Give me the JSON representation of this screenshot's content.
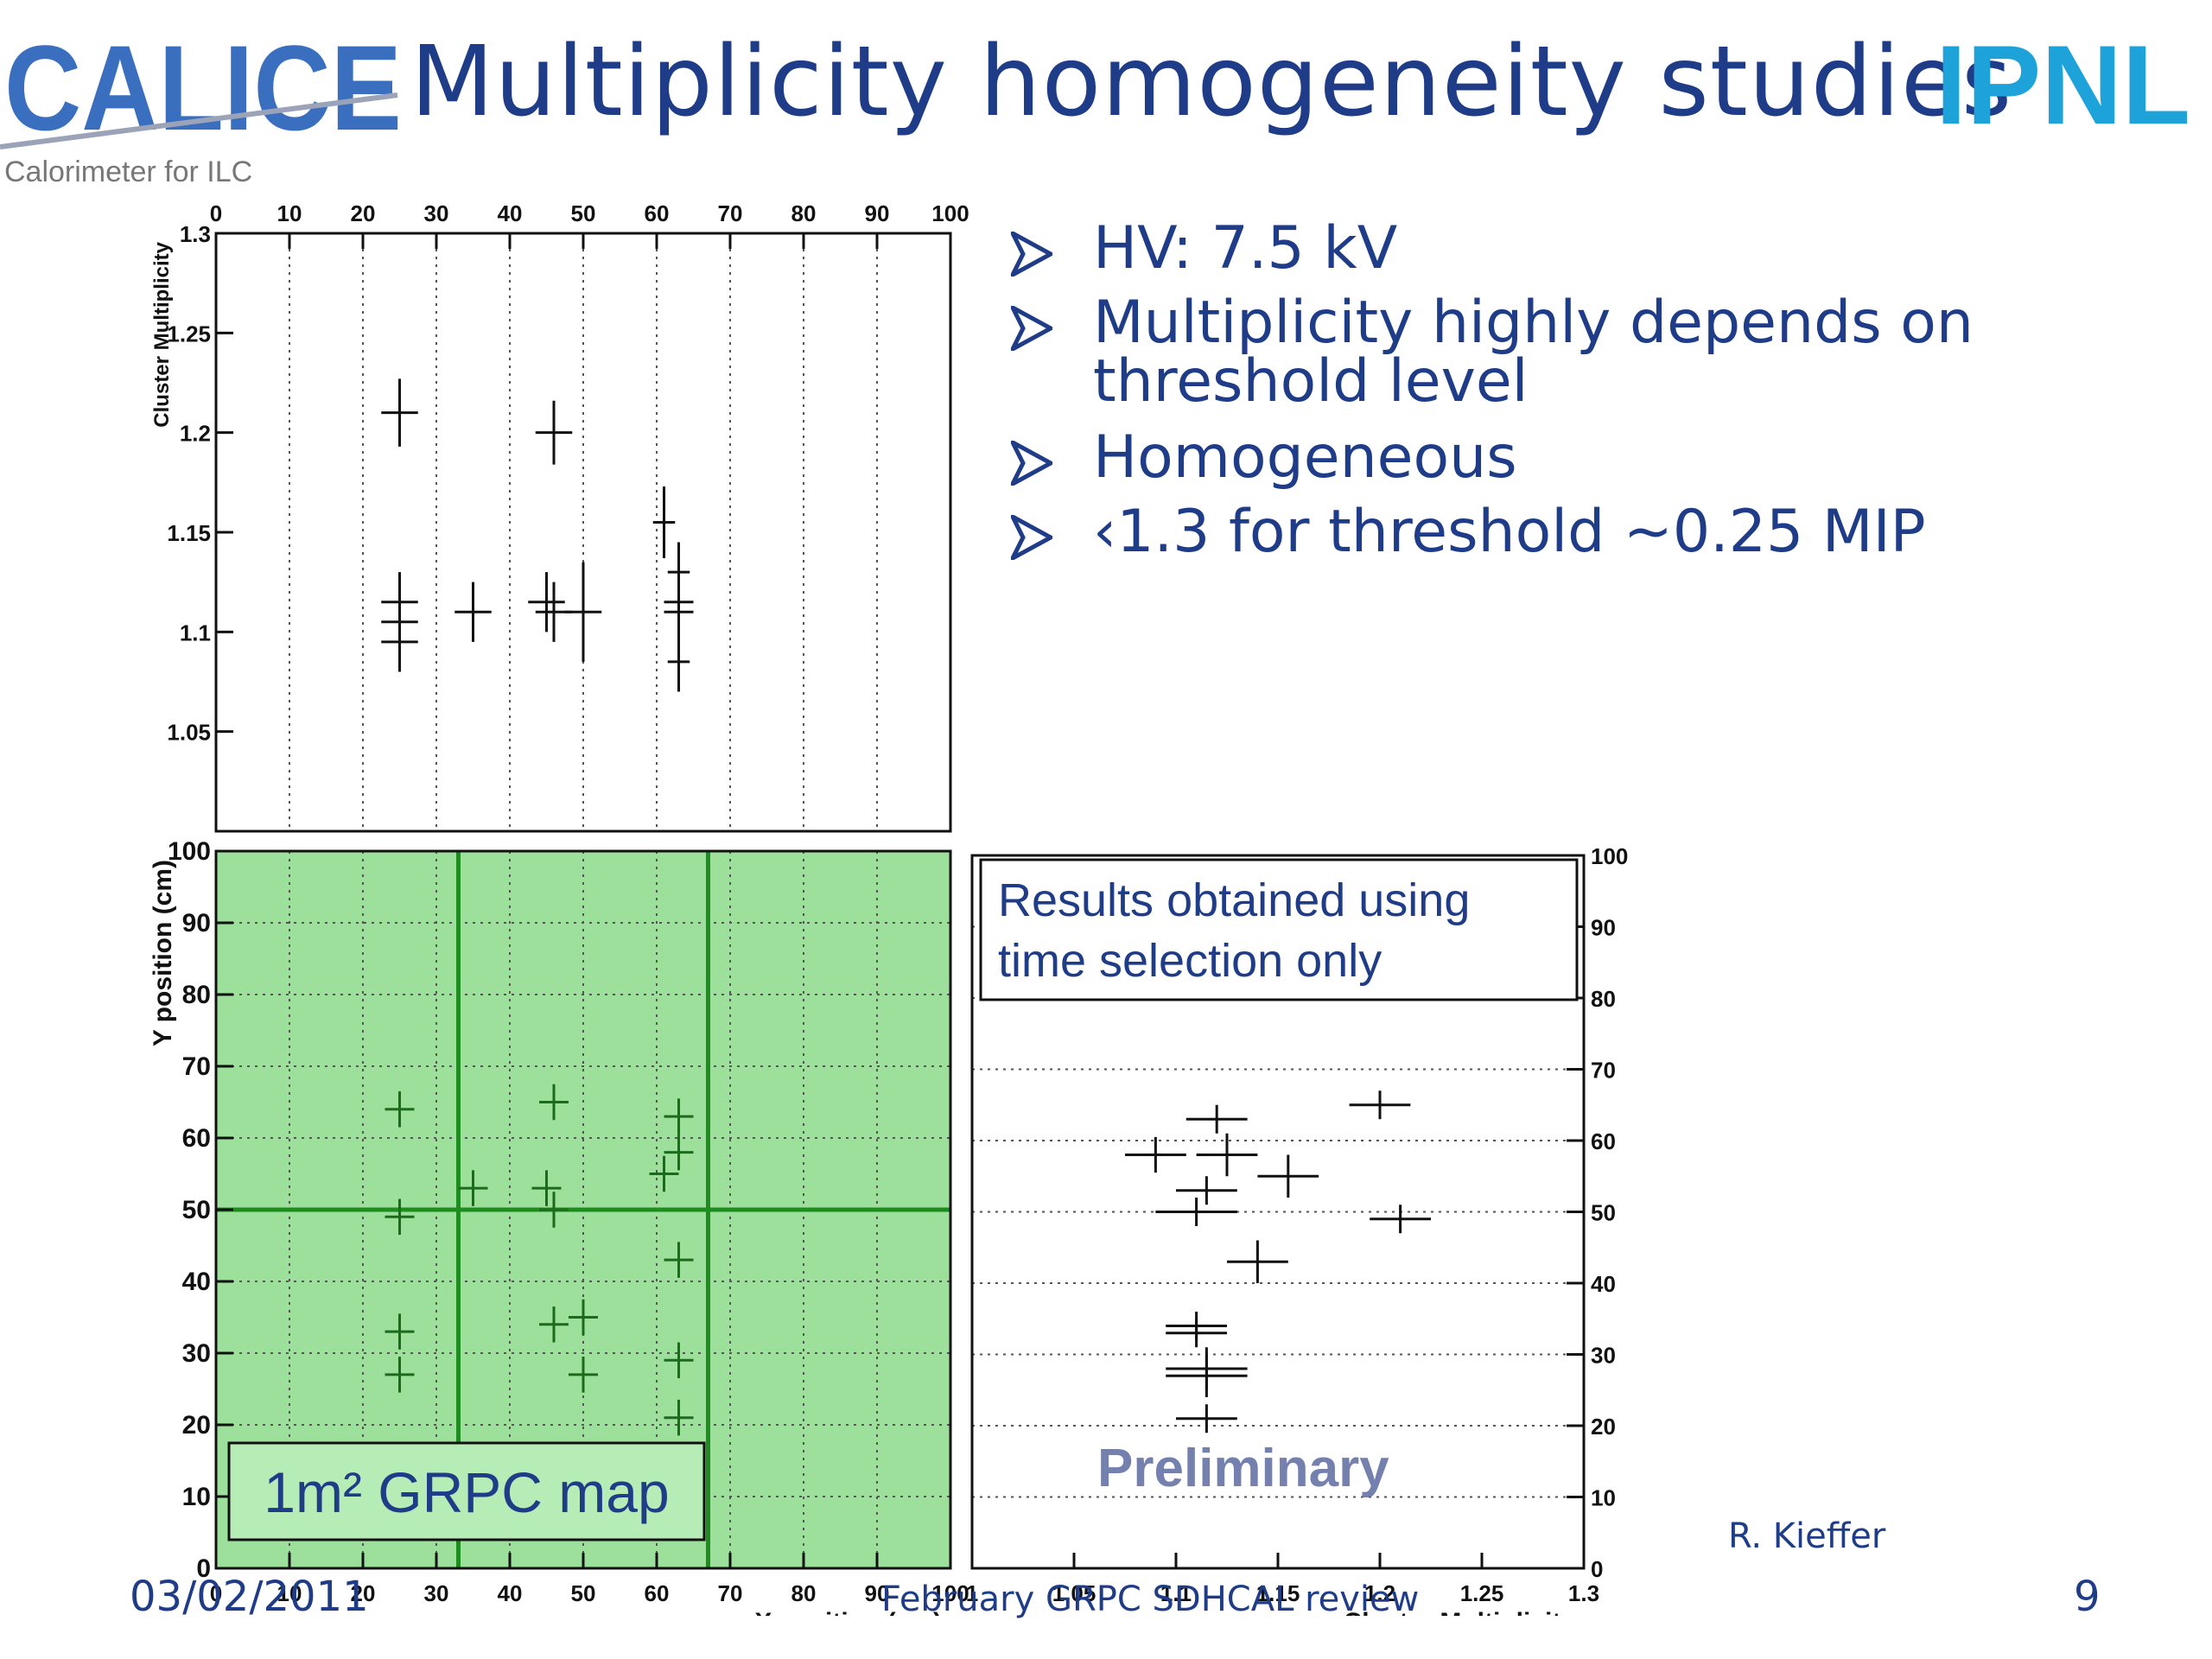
{
  "slide": {
    "title": "Multiplicity homogeneity studies",
    "bullets": [
      "HV: 7.5 kV",
      "Multiplicity highly depends on",
      "threshold level",
      "Homogeneous",
      "‹1.3 for threshold ~0.25 MIP"
    ],
    "footer_date": "03/02/2011",
    "footer_center": "February GRPC SDHCAL review",
    "page_number": "9",
    "author": "R. Kieffer"
  },
  "logos": {
    "left_text": "CALICE",
    "left_subtitle": "Calorimeter for ILC",
    "right_text": "IPNL"
  },
  "colors": {
    "title_blue": "#1f3c88",
    "map_green": "#9ce09c",
    "map_line": "#1f8c1f",
    "logo_left_blue": "#3a6fc0",
    "logo_right_cyan": "#1da3d9"
  },
  "chart_data": [
    {
      "id": "top",
      "type": "scatter",
      "xlabel": "",
      "ylabel": "Cluster Multiplicity",
      "xlim": [
        0,
        100
      ],
      "ylim": [
        1.0,
        1.3
      ],
      "x_ticks": [
        0,
        10,
        20,
        30,
        40,
        50,
        60,
        70,
        80,
        90,
        100
      ],
      "y_ticks": [
        1.05,
        1.1,
        1.15,
        1.2,
        1.25,
        1.3
      ],
      "grid": "vertical-dotted",
      "points": [
        {
          "x": 25,
          "y": 1.21,
          "ex": 2.5,
          "ey": 0.017
        },
        {
          "x": 46,
          "y": 1.2,
          "ex": 2.5,
          "ey": 0.016
        },
        {
          "x": 25,
          "y": 1.115,
          "ex": 2.5,
          "ey": 0.015
        },
        {
          "x": 25,
          "y": 1.105,
          "ex": 2.5,
          "ey": 0.015
        },
        {
          "x": 25,
          "y": 1.095,
          "ex": 2.5,
          "ey": 0.015
        },
        {
          "x": 35,
          "y": 1.11,
          "ex": 2.5,
          "ey": 0.015
        },
        {
          "x": 45,
          "y": 1.115,
          "ex": 2.5,
          "ey": 0.015
        },
        {
          "x": 46,
          "y": 1.11,
          "ex": 2.5,
          "ey": 0.015
        },
        {
          "x": 50,
          "y": 1.11,
          "ex": 2.5,
          "ey": 0.025
        },
        {
          "x": 61,
          "y": 1.155,
          "ex": 1.5,
          "ey": 0.018
        },
        {
          "x": 63,
          "y": 1.13,
          "ex": 1.5,
          "ey": 0.015
        },
        {
          "x": 63,
          "y": 1.115,
          "ex": 2,
          "ey": 0.015
        },
        {
          "x": 63,
          "y": 1.11,
          "ex": 2,
          "ey": 0.015
        },
        {
          "x": 63,
          "y": 1.085,
          "ex": 1.5,
          "ey": 0.015
        }
      ]
    },
    {
      "id": "map",
      "type": "scatter",
      "xlabel": "X position (cm)",
      "ylabel": "Y position (cm)",
      "xlim": [
        0,
        100
      ],
      "ylim": [
        0,
        100
      ],
      "x_ticks": [
        0,
        10,
        20,
        30,
        40,
        50,
        60,
        70,
        80,
        90,
        100
      ],
      "y_ticks": [
        0,
        10,
        20,
        30,
        40,
        50,
        60,
        70,
        80,
        90,
        100
      ],
      "grid": "dotted",
      "background": "green",
      "annotation": "1m² GRPC map",
      "divider_lines": {
        "x": [
          33,
          67
        ],
        "y": [
          50
        ]
      },
      "points": [
        {
          "x": 25,
          "y": 64
        },
        {
          "x": 46,
          "y": 65
        },
        {
          "x": 63,
          "y": 63
        },
        {
          "x": 63,
          "y": 58
        },
        {
          "x": 61,
          "y": 55
        },
        {
          "x": 35,
          "y": 53
        },
        {
          "x": 45,
          "y": 53
        },
        {
          "x": 46,
          "y": 50
        },
        {
          "x": 25,
          "y": 49
        },
        {
          "x": 63,
          "y": 43
        },
        {
          "x": 25,
          "y": 33
        },
        {
          "x": 46,
          "y": 34
        },
        {
          "x": 50,
          "y": 35
        },
        {
          "x": 63,
          "y": 29
        },
        {
          "x": 25,
          "y": 27
        },
        {
          "x": 50,
          "y": 27
        },
        {
          "x": 63,
          "y": 21
        }
      ]
    },
    {
      "id": "right",
      "type": "scatter",
      "xlabel": "Cluster Multiplicity",
      "ylabel": "",
      "xlim": [
        1.0,
        1.3
      ],
      "ylim": [
        0,
        100
      ],
      "x_ticks": [
        1,
        1.05,
        1.1,
        1.15,
        1.2,
        1.25,
        1.3
      ],
      "y_ticks": [
        0,
        10,
        20,
        30,
        40,
        50,
        60,
        70,
        80,
        90,
        100
      ],
      "grid": "horizontal-dotted",
      "legend_text": [
        "Results obtained using",
        "time selection only"
      ],
      "watermark": "Preliminary",
      "points": [
        {
          "x": 1.12,
          "y": 63,
          "ex": 0.015,
          "ey": 2
        },
        {
          "x": 1.2,
          "y": 65,
          "ex": 0.015,
          "ey": 2
        },
        {
          "x": 1.09,
          "y": 58,
          "ex": 0.015,
          "ey": 2.5
        },
        {
          "x": 1.125,
          "y": 58,
          "ex": 0.015,
          "ey": 3
        },
        {
          "x": 1.155,
          "y": 55,
          "ex": 0.015,
          "ey": 3
        },
        {
          "x": 1.115,
          "y": 53,
          "ex": 0.015,
          "ey": 2
        },
        {
          "x": 1.11,
          "y": 50,
          "ex": 0.02,
          "ey": 2
        },
        {
          "x": 1.21,
          "y": 49,
          "ex": 0.015,
          "ey": 2
        },
        {
          "x": 1.14,
          "y": 43,
          "ex": 0.015,
          "ey": 3
        },
        {
          "x": 1.11,
          "y": 34,
          "ex": 0.015,
          "ey": 2
        },
        {
          "x": 1.11,
          "y": 33,
          "ex": 0.015,
          "ey": 2
        },
        {
          "x": 1.115,
          "y": 28,
          "ex": 0.02,
          "ey": 3
        },
        {
          "x": 1.115,
          "y": 27,
          "ex": 0.02,
          "ey": 3
        },
        {
          "x": 1.115,
          "y": 21,
          "ex": 0.015,
          "ey": 2
        }
      ]
    }
  ]
}
